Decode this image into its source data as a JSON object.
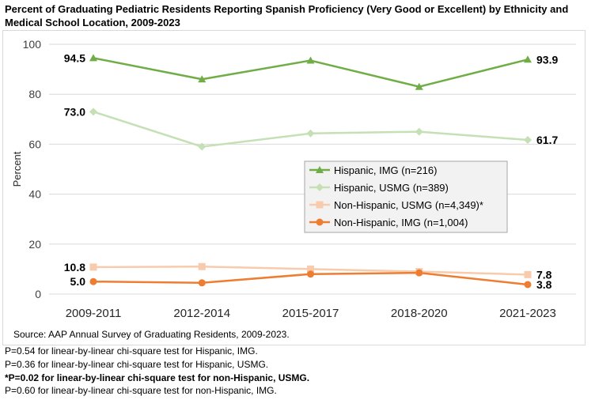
{
  "title": "Percent of Graduating Pediatric Residents Reporting Spanish Proficiency (Very Good or Excellent) by Ethnicity and Medical School Location, 2009-2023",
  "source": "Source: AAP Annual Survey of Graduating Residents, 2009-2023.",
  "notes": [
    {
      "text": "P=0.54 for linear-by-linear chi-square test for Hispanic, IMG.",
      "bold": false
    },
    {
      "text": "P=0.36 for linear-by-linear chi-square test for Hispanic, USMG.",
      "bold": false
    },
    {
      "text": "*P=0.02 for linear-by-linear chi-square test for non-Hispanic, USMG.",
      "bold": true
    },
    {
      "text": "P=0.60 for linear-by-linear chi-square test for non-Hispanic, IMG.",
      "bold": false
    }
  ],
  "chart_data": {
    "type": "line",
    "categories": [
      "2009-2011",
      "2012-2014",
      "2015-2017",
      "2018-2020",
      "2021-2023"
    ],
    "ylabel": "Percent",
    "ylim": [
      0,
      100
    ],
    "yticks": [
      0,
      20,
      40,
      60,
      80,
      100
    ],
    "grid": true,
    "legend_position": "right-center",
    "series": [
      {
        "name": "Hispanic, IMG (n=216)",
        "values": [
          94.5,
          86.0,
          93.5,
          83.0,
          93.9
        ],
        "color": "#70ad47",
        "marker": "triangle",
        "labels": {
          "0": "94.5",
          "4": "93.9"
        }
      },
      {
        "name": "Hispanic, USMG (n=389)",
        "values": [
          73.0,
          59.0,
          64.3,
          65.0,
          61.7
        ],
        "color": "#c5e0b4",
        "marker": "diamond",
        "labels": {
          "0": "73.0",
          "4": "61.7"
        }
      },
      {
        "name": "Non-Hispanic, USMG (n=4,349)*",
        "values": [
          10.8,
          11.0,
          10.0,
          9.0,
          7.8
        ],
        "color": "#f8cbad",
        "marker": "square",
        "labels": {
          "0": "10.8",
          "4": "7.8"
        }
      },
      {
        "name": "Non-Hispanic, IMG (n=1,004)",
        "values": [
          5.0,
          4.5,
          8.0,
          8.5,
          3.8
        ],
        "color": "#ed7d31",
        "marker": "circle",
        "labels": {
          "0": "5.0",
          "4": "3.8"
        }
      }
    ]
  }
}
